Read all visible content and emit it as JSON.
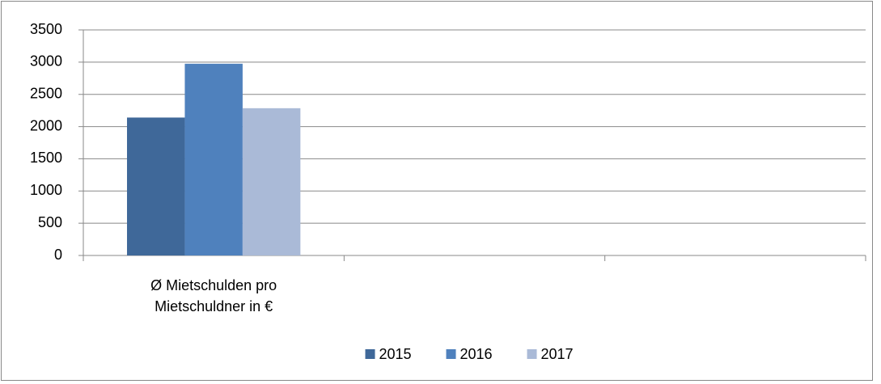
{
  "chart_data": {
    "type": "bar",
    "categories": [
      "Ø Mietschulden pro Mietschuldner in €",
      null,
      null
    ],
    "series": [
      {
        "name": "2015",
        "color": "#3f6899",
        "values": [
          2140,
          null,
          null
        ]
      },
      {
        "name": "2016",
        "color": "#4f81bd",
        "values": [
          2975,
          null,
          null
        ]
      },
      {
        "name": "2017",
        "color": "#aabad7",
        "values": [
          2285,
          null,
          null
        ]
      }
    ],
    "ylim": [
      0,
      3500
    ],
    "yticks": [
      0,
      500,
      1000,
      1500,
      2000,
      2500,
      3000,
      3500
    ],
    "grid": true,
    "legend": "bottom"
  }
}
